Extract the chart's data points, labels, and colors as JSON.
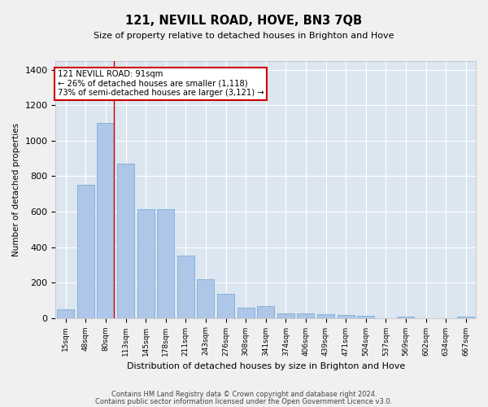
{
  "title": "121, NEVILL ROAD, HOVE, BN3 7QB",
  "subtitle": "Size of property relative to detached houses in Brighton and Hove",
  "xlabel": "Distribution of detached houses by size in Brighton and Hove",
  "ylabel": "Number of detached properties",
  "footnote1": "Contains HM Land Registry data © Crown copyright and database right 2024.",
  "footnote2": "Contains public sector information licensed under the Open Government Licence v3.0.",
  "categories": [
    "15sqm",
    "48sqm",
    "80sqm",
    "113sqm",
    "145sqm",
    "178sqm",
    "211sqm",
    "243sqm",
    "276sqm",
    "308sqm",
    "341sqm",
    "374sqm",
    "406sqm",
    "439sqm",
    "471sqm",
    "504sqm",
    "537sqm",
    "569sqm",
    "602sqm",
    "634sqm",
    "667sqm"
  ],
  "values": [
    50,
    750,
    1100,
    870,
    615,
    615,
    350,
    220,
    135,
    60,
    65,
    25,
    25,
    20,
    15,
    10,
    0,
    8,
    0,
    0,
    8
  ],
  "bar_color": "#aec6e8",
  "bar_edgecolor": "#7aaed4",
  "background_color": "#dce6f0",
  "fig_background_color": "#f0f0f0",
  "grid_color": "#ffffff",
  "annotation_box_text": "121 NEVILL ROAD: 91sqm\n← 26% of detached houses are smaller (1,118)\n73% of semi-detached houses are larger (3,121) →",
  "annotation_box_color": "#ffffff",
  "annotation_box_edgecolor": "#cc0000",
  "red_line_x": 2.42,
  "ylim": [
    0,
    1450
  ],
  "yticks": [
    0,
    200,
    400,
    600,
    800,
    1000,
    1200,
    1400
  ]
}
